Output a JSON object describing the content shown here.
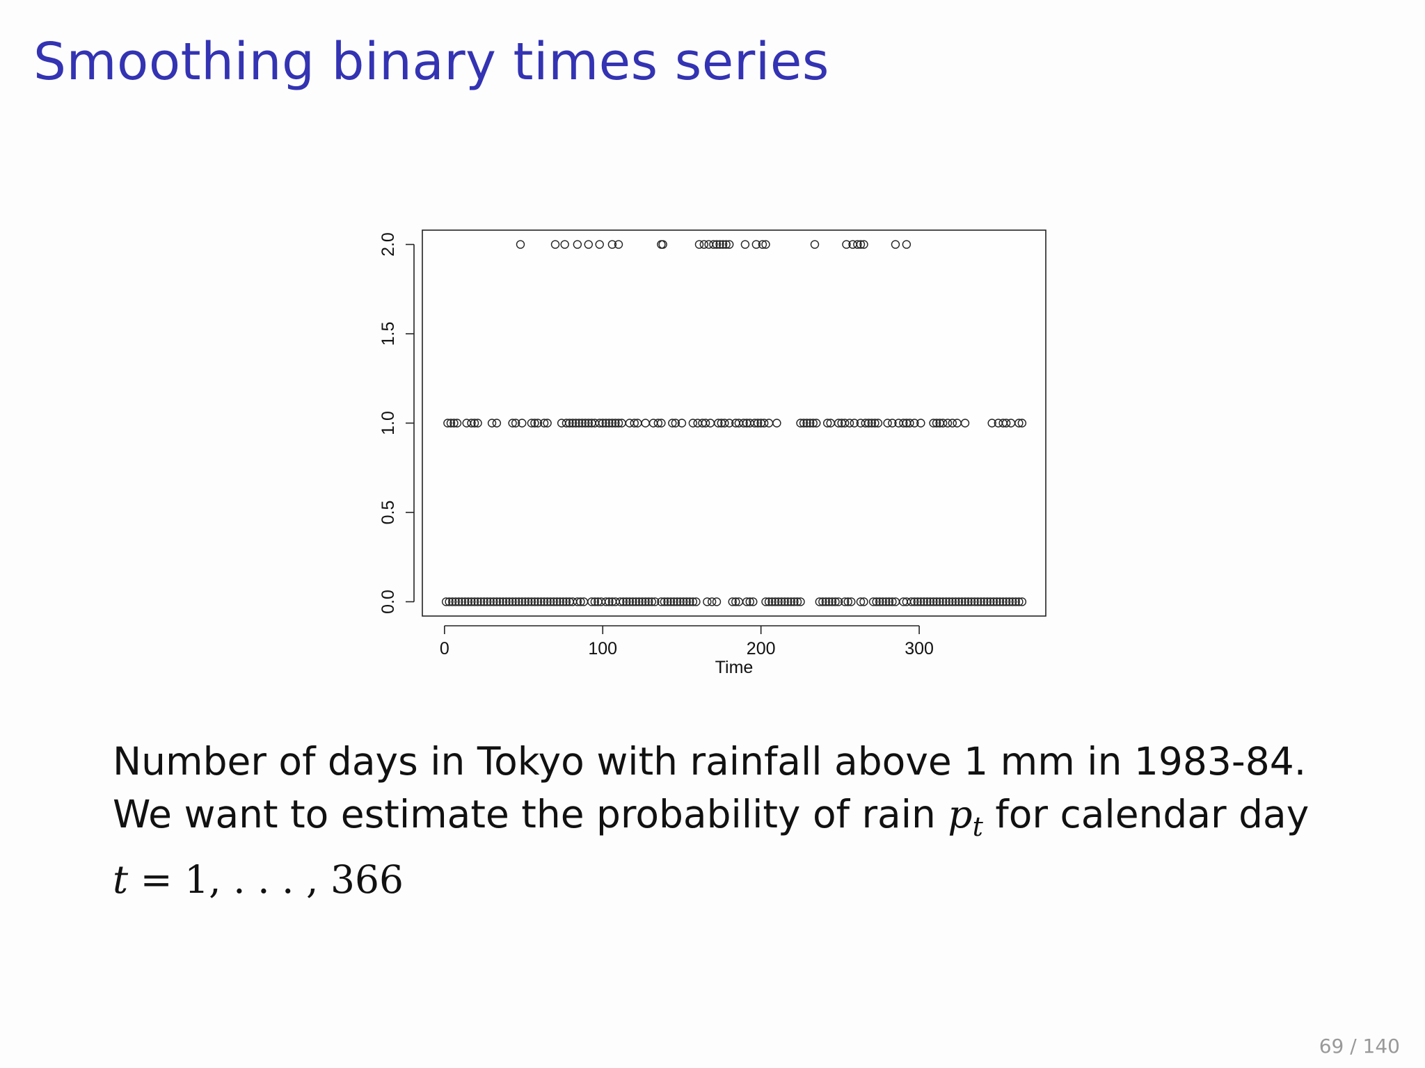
{
  "slide": {
    "title": "Smoothing binary times series",
    "page_number": "69 / 140"
  },
  "text": {
    "line1": "Number of days in Tokyo with rainfall above 1 mm in 1983-84.",
    "line2_pre": "We want to estimate the probability of rain ",
    "line2_var": "p",
    "line2_sub": "t",
    "line2_post": " for calendar day",
    "line3_var": "t",
    "line3_math": " = 1, . . . , 366"
  },
  "chart_data": {
    "type": "scatter",
    "marker": "open-circle",
    "xlabel": "Time",
    "ylabel": "",
    "xlim": [
      -14,
      380
    ],
    "ylim": [
      -0.08,
      2.08
    ],
    "xticks": [
      "0",
      "100",
      "200",
      "300"
    ],
    "yticks": [
      "0.0",
      "0.5",
      "1.0",
      "1.5",
      "2.0"
    ],
    "series": [
      {
        "y": 2,
        "x": [
          48,
          70,
          76,
          84,
          91,
          98,
          106,
          110,
          137,
          138,
          161,
          164,
          167,
          170,
          172,
          174,
          176,
          178,
          180,
          190,
          197,
          201,
          203,
          234,
          254,
          258,
          261,
          263,
          265,
          285,
          292
        ]
      },
      {
        "y": 1,
        "x": [
          2,
          4,
          6,
          8,
          14,
          17,
          19,
          21,
          30,
          33,
          43,
          45,
          49,
          55,
          57,
          59,
          63,
          65,
          74,
          77,
          79,
          81,
          83,
          85,
          87,
          89,
          91,
          93,
          95,
          98,
          100,
          102,
          104,
          106,
          108,
          110,
          112,
          117,
          120,
          122,
          127,
          132,
          135,
          137,
          144,
          146,
          150,
          157,
          160,
          163,
          165,
          168,
          173,
          175,
          177,
          180,
          184,
          186,
          189,
          191,
          193,
          196,
          198,
          200,
          202,
          205,
          210,
          225,
          227,
          229,
          231,
          233,
          235,
          242,
          244,
          249,
          251,
          253,
          256,
          259,
          263,
          266,
          268,
          270,
          272,
          274,
          280,
          283,
          287,
          290,
          292,
          294,
          297,
          301,
          309,
          311,
          313,
          315,
          318,
          321,
          324,
          329,
          346,
          350,
          353,
          355,
          358,
          363,
          365
        ]
      },
      {
        "y": 0,
        "x": [
          1,
          3,
          5,
          7,
          9,
          11,
          13,
          15,
          17,
          19,
          21,
          23,
          25,
          27,
          29,
          31,
          33,
          35,
          37,
          39,
          41,
          43,
          45,
          47,
          49,
          51,
          53,
          55,
          57,
          59,
          61,
          63,
          65,
          67,
          69,
          71,
          73,
          75,
          77,
          79,
          81,
          84,
          86,
          88,
          93,
          95,
          97,
          99,
          102,
          104,
          106,
          108,
          111,
          113,
          115,
          117,
          119,
          121,
          123,
          125,
          127,
          129,
          131,
          133,
          137,
          139,
          141,
          143,
          145,
          147,
          149,
          151,
          153,
          155,
          157,
          159,
          166,
          169,
          172,
          182,
          184,
          186,
          191,
          193,
          195,
          203,
          205,
          207,
          209,
          211,
          213,
          215,
          217,
          219,
          221,
          223,
          225,
          237,
          239,
          241,
          243,
          245,
          247,
          249,
          253,
          255,
          257,
          263,
          265,
          271,
          273,
          275,
          277,
          279,
          281,
          283,
          285,
          290,
          292,
          295,
          297,
          299,
          301,
          303,
          305,
          307,
          309,
          311,
          313,
          315,
          317,
          319,
          321,
          323,
          325,
          327,
          329,
          331,
          333,
          335,
          337,
          339,
          341,
          343,
          345,
          347,
          349,
          351,
          353,
          355,
          357,
          359,
          361,
          363,
          365
        ]
      }
    ]
  }
}
